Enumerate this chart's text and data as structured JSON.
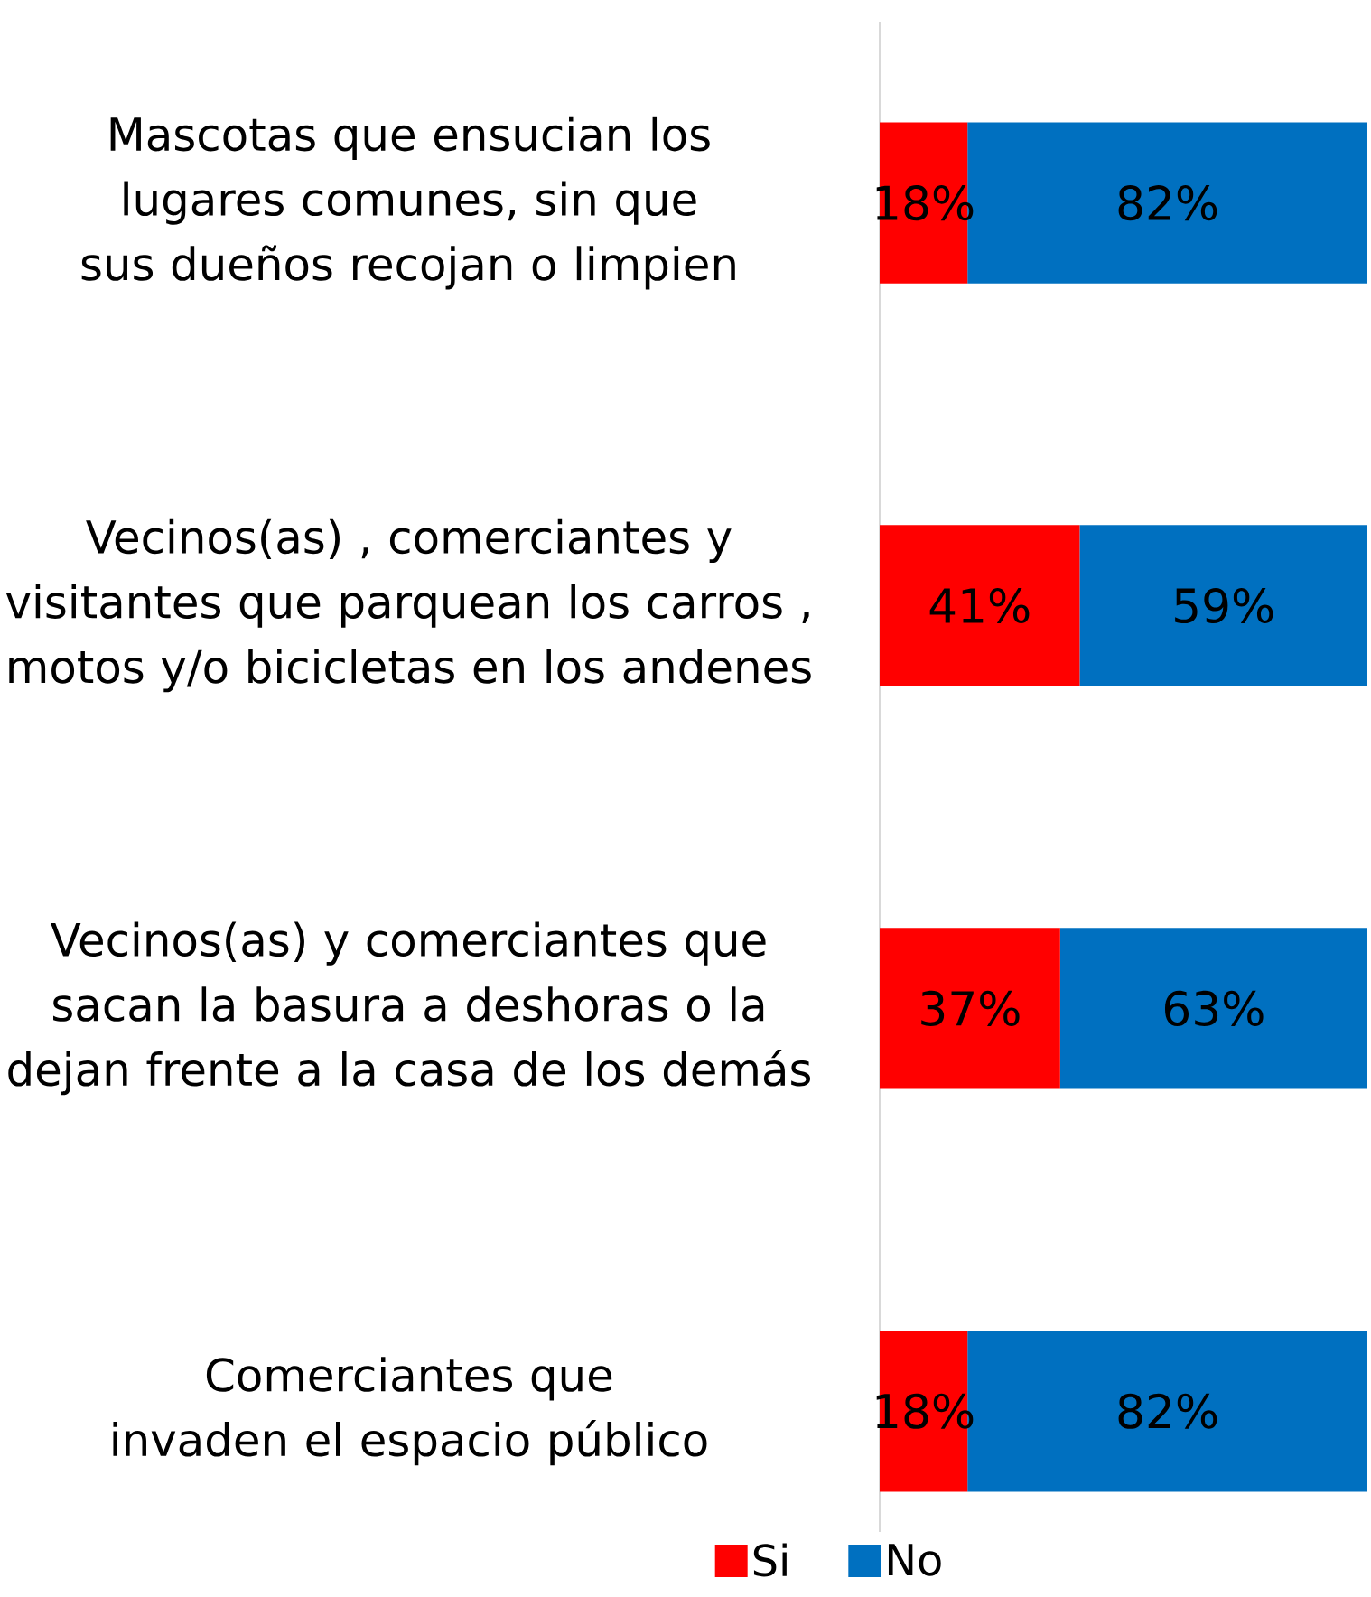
{
  "chart_data": {
    "type": "bar",
    "orientation": "horizontal",
    "stacked": true,
    "categories": [
      "Mascotas que ensucian los lugares comunes, sin que sus dueños recojan o limpien",
      "Vecinos(as) , comerciantes y visitantes que parquean los carros , motos y/o bicicletas en los andenes",
      "Vecinos(as) y comerciantes que sacan la basura a deshoras o la dejan frente a la casa de los demás",
      "Comerciantes que invaden el espacio público"
    ],
    "series": [
      {
        "name": "Si",
        "color": "#ff0000",
        "values": [
          18,
          41,
          37,
          18
        ],
        "value_labels": [
          "18%",
          "41%",
          "37%",
          "18%"
        ]
      },
      {
        "name": "No",
        "color": "#0070c0",
        "values": [
          82,
          59,
          63,
          82
        ],
        "value_labels": [
          "82%",
          "59%",
          "63%",
          "82%"
        ]
      }
    ],
    "xlim": [
      0,
      100
    ],
    "tick_labels": "y",
    "legend": "bottom"
  }
}
